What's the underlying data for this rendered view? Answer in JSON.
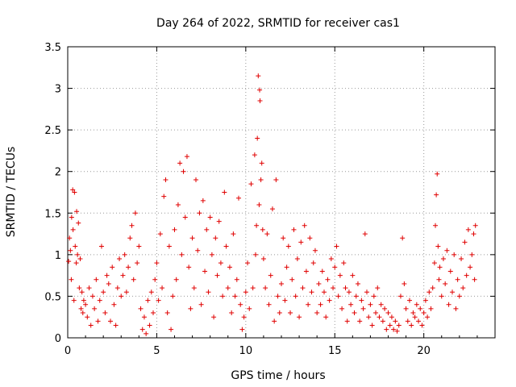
{
  "chart_data": {
    "type": "scatter",
    "title": "Day 264 of 2022, SRMTID for receiver cas1",
    "xlabel": "GPS time / hours",
    "ylabel": "SRMTID / TECUs",
    "xlim": [
      0,
      24
    ],
    "ylim": [
      0,
      3.5
    ],
    "xticks": [
      0,
      5,
      10,
      15,
      20
    ],
    "yticks": [
      0,
      0.5,
      1,
      1.5,
      2,
      2.5,
      3,
      3.5
    ],
    "xtick_labels": [
      "0",
      "5",
      "10",
      "15",
      "20"
    ],
    "ytick_labels": [
      "0",
      "0.5",
      "1",
      "1.5",
      "2",
      "2.5",
      "3",
      "3.5"
    ],
    "grid": true,
    "marker": "+",
    "color": "#e00000",
    "x_range_of_data": [
      0,
      22.9
    ],
    "series": [
      {
        "name": "SRMTID",
        "points": [
          [
            0.05,
            0.92
          ],
          [
            0.1,
            1.2
          ],
          [
            0.15,
            1.05
          ],
          [
            0.2,
            0.7
          ],
          [
            0.22,
            1.45
          ],
          [
            0.28,
            1.78
          ],
          [
            0.3,
            1.3
          ],
          [
            0.35,
            0.45
          ],
          [
            0.38,
            1.75
          ],
          [
            0.42,
            1.1
          ],
          [
            0.48,
            0.9
          ],
          [
            0.5,
            1.52
          ],
          [
            0.55,
            1.0
          ],
          [
            0.6,
            1.38
          ],
          [
            0.65,
            0.6
          ],
          [
            0.7,
            0.95
          ],
          [
            0.75,
            0.35
          ],
          [
            0.8,
            0.55
          ],
          [
            0.85,
            0.3
          ],
          [
            0.9,
            0.45
          ],
          [
            1.0,
            0.4
          ],
          [
            1.1,
            0.25
          ],
          [
            1.2,
            0.6
          ],
          [
            1.3,
            0.15
          ],
          [
            1.4,
            0.5
          ],
          [
            1.5,
            0.35
          ],
          [
            1.6,
            0.7
          ],
          [
            1.7,
            0.2
          ],
          [
            1.8,
            0.45
          ],
          [
            1.9,
            1.1
          ],
          [
            2.0,
            0.55
          ],
          [
            2.1,
            0.3
          ],
          [
            2.2,
            0.75
          ],
          [
            2.3,
            0.65
          ],
          [
            2.4,
            0.2
          ],
          [
            2.5,
            0.85
          ],
          [
            2.6,
            0.4
          ],
          [
            2.7,
            0.15
          ],
          [
            2.8,
            0.6
          ],
          [
            2.9,
            0.95
          ],
          [
            3.0,
            0.5
          ],
          [
            3.1,
            0.75
          ],
          [
            3.2,
            1.0
          ],
          [
            3.3,
            0.55
          ],
          [
            3.4,
            0.85
          ],
          [
            3.5,
            1.2
          ],
          [
            3.6,
            1.35
          ],
          [
            3.7,
            0.7
          ],
          [
            3.8,
            1.5
          ],
          [
            3.9,
            0.9
          ],
          [
            4.0,
            1.1
          ],
          [
            4.1,
            0.35
          ],
          [
            4.2,
            0.1
          ],
          [
            4.3,
            0.25
          ],
          [
            4.4,
            0.05
          ],
          [
            4.5,
            0.45
          ],
          [
            4.6,
            0.15
          ],
          [
            4.7,
            0.55
          ],
          [
            4.8,
            0.3
          ],
          [
            4.9,
            0.7
          ],
          [
            5.0,
            0.9
          ],
          [
            5.1,
            0.45
          ],
          [
            5.2,
            1.25
          ],
          [
            5.3,
            0.6
          ],
          [
            5.4,
            1.7
          ],
          [
            5.5,
            1.9
          ],
          [
            5.6,
            0.3
          ],
          [
            5.7,
            1.1
          ],
          [
            5.8,
            0.1
          ],
          [
            5.9,
            0.5
          ],
          [
            6.0,
            1.3
          ],
          [
            6.1,
            0.7
          ],
          [
            6.2,
            1.6
          ],
          [
            6.3,
            2.1
          ],
          [
            6.4,
            1.0
          ],
          [
            6.5,
            2.0
          ],
          [
            6.6,
            1.45
          ],
          [
            6.7,
            2.18
          ],
          [
            6.8,
            0.85
          ],
          [
            6.9,
            0.35
          ],
          [
            7.0,
            1.2
          ],
          [
            7.1,
            0.6
          ],
          [
            7.2,
            1.9
          ],
          [
            7.3,
            1.05
          ],
          [
            7.4,
            1.5
          ],
          [
            7.5,
            0.4
          ],
          [
            7.6,
            1.65
          ],
          [
            7.7,
            0.8
          ],
          [
            7.8,
            1.3
          ],
          [
            7.9,
            0.55
          ],
          [
            8.0,
            1.45
          ],
          [
            8.1,
            1.0
          ],
          [
            8.2,
            0.25
          ],
          [
            8.3,
            1.2
          ],
          [
            8.4,
            0.75
          ],
          [
            8.5,
            1.4
          ],
          [
            8.6,
            0.9
          ],
          [
            8.7,
            0.5
          ],
          [
            8.8,
            1.75
          ],
          [
            8.9,
            1.1
          ],
          [
            9.0,
            0.6
          ],
          [
            9.1,
            0.85
          ],
          [
            9.2,
            0.3
          ],
          [
            9.3,
            1.25
          ],
          [
            9.4,
            0.5
          ],
          [
            9.5,
            0.7
          ],
          [
            9.6,
            1.68
          ],
          [
            9.7,
            0.4
          ],
          [
            9.8,
            0.1
          ],
          [
            9.9,
            0.25
          ],
          [
            10.0,
            0.55
          ],
          [
            10.1,
            0.9
          ],
          [
            10.2,
            0.35
          ],
          [
            10.3,
            1.85
          ],
          [
            10.4,
            0.6
          ],
          [
            10.5,
            2.2
          ],
          [
            10.55,
            1.0
          ],
          [
            10.6,
            1.35
          ],
          [
            10.65,
            2.4
          ],
          [
            10.7,
            3.15
          ],
          [
            10.75,
            1.6
          ],
          [
            10.78,
            2.98
          ],
          [
            10.8,
            2.85
          ],
          [
            10.85,
            1.9
          ],
          [
            10.9,
            2.1
          ],
          [
            10.95,
            1.3
          ],
          [
            11.0,
            0.95
          ],
          [
            11.1,
            0.6
          ],
          [
            11.2,
            1.25
          ],
          [
            11.3,
            0.4
          ],
          [
            11.4,
            0.75
          ],
          [
            11.5,
            1.55
          ],
          [
            11.6,
            0.2
          ],
          [
            11.7,
            1.9
          ],
          [
            11.8,
            0.5
          ],
          [
            11.9,
            0.3
          ],
          [
            12.0,
            0.65
          ],
          [
            12.1,
            1.2
          ],
          [
            12.2,
            0.45
          ],
          [
            12.3,
            0.85
          ],
          [
            12.4,
            1.1
          ],
          [
            12.5,
            0.3
          ],
          [
            12.6,
            0.7
          ],
          [
            12.7,
            1.3
          ],
          [
            12.8,
            0.5
          ],
          [
            12.9,
            0.95
          ],
          [
            13.0,
            0.25
          ],
          [
            13.1,
            1.15
          ],
          [
            13.2,
            0.6
          ],
          [
            13.3,
            1.35
          ],
          [
            13.4,
            0.8
          ],
          [
            13.5,
            0.4
          ],
          [
            13.6,
            1.2
          ],
          [
            13.7,
            0.55
          ],
          [
            13.8,
            0.9
          ],
          [
            13.9,
            1.05
          ],
          [
            14.0,
            0.3
          ],
          [
            14.1,
            0.65
          ],
          [
            14.2,
            0.4
          ],
          [
            14.3,
            0.8
          ],
          [
            14.4,
            0.55
          ],
          [
            14.5,
            0.25
          ],
          [
            14.6,
            0.7
          ],
          [
            14.7,
            0.45
          ],
          [
            14.8,
            0.95
          ],
          [
            14.9,
            0.6
          ],
          [
            15.0,
            0.85
          ],
          [
            15.1,
            1.1
          ],
          [
            15.2,
            0.5
          ],
          [
            15.3,
            0.75
          ],
          [
            15.4,
            0.35
          ],
          [
            15.5,
            0.9
          ],
          [
            15.6,
            0.6
          ],
          [
            15.7,
            0.2
          ],
          [
            15.8,
            0.55
          ],
          [
            15.9,
            0.4
          ],
          [
            16.0,
            0.75
          ],
          [
            16.1,
            0.3
          ],
          [
            16.2,
            0.5
          ],
          [
            16.3,
            0.65
          ],
          [
            16.4,
            0.2
          ],
          [
            16.5,
            0.45
          ],
          [
            16.6,
            0.35
          ],
          [
            16.7,
            1.25
          ],
          [
            16.8,
            0.55
          ],
          [
            16.9,
            0.25
          ],
          [
            17.0,
            0.4
          ],
          [
            17.1,
            0.15
          ],
          [
            17.2,
            0.5
          ],
          [
            17.3,
            0.3
          ],
          [
            17.4,
            0.6
          ],
          [
            17.5,
            0.25
          ],
          [
            17.6,
            0.4
          ],
          [
            17.7,
            0.2
          ],
          [
            17.8,
            0.35
          ],
          [
            17.9,
            0.1
          ],
          [
            18.0,
            0.3
          ],
          [
            18.1,
            0.15
          ],
          [
            18.2,
            0.25
          ],
          [
            18.3,
            0.1
          ],
          [
            18.4,
            0.2
          ],
          [
            18.5,
            0.08
          ],
          [
            18.6,
            0.15
          ],
          [
            18.7,
            0.5
          ],
          [
            18.8,
            1.2
          ],
          [
            18.9,
            0.65
          ],
          [
            19.0,
            0.35
          ],
          [
            19.1,
            0.2
          ],
          [
            19.2,
            0.45
          ],
          [
            19.3,
            0.15
          ],
          [
            19.4,
            0.3
          ],
          [
            19.5,
            0.25
          ],
          [
            19.6,
            0.4
          ],
          [
            19.7,
            0.2
          ],
          [
            19.8,
            0.35
          ],
          [
            19.9,
            0.15
          ],
          [
            20.0,
            0.3
          ],
          [
            20.1,
            0.45
          ],
          [
            20.2,
            0.25
          ],
          [
            20.3,
            0.55
          ],
          [
            20.4,
            0.35
          ],
          [
            20.5,
            0.6
          ],
          [
            20.6,
            0.9
          ],
          [
            20.65,
            1.35
          ],
          [
            20.7,
            1.72
          ],
          [
            20.75,
            1.97
          ],
          [
            20.8,
            1.1
          ],
          [
            20.85,
            0.7
          ],
          [
            20.9,
            0.85
          ],
          [
            21.0,
            0.5
          ],
          [
            21.1,
            0.95
          ],
          [
            21.2,
            0.65
          ],
          [
            21.3,
            1.05
          ],
          [
            21.4,
            0.4
          ],
          [
            21.5,
            0.8
          ],
          [
            21.6,
            0.55
          ],
          [
            21.7,
            1.0
          ],
          [
            21.8,
            0.35
          ],
          [
            21.9,
            0.7
          ],
          [
            22.0,
            0.5
          ],
          [
            22.1,
            0.95
          ],
          [
            22.2,
            0.6
          ],
          [
            22.3,
            1.15
          ],
          [
            22.4,
            0.75
          ],
          [
            22.5,
            1.3
          ],
          [
            22.6,
            0.85
          ],
          [
            22.7,
            1.0
          ],
          [
            22.8,
            1.25
          ],
          [
            22.85,
            0.7
          ],
          [
            22.9,
            1.35
          ]
        ]
      }
    ]
  }
}
